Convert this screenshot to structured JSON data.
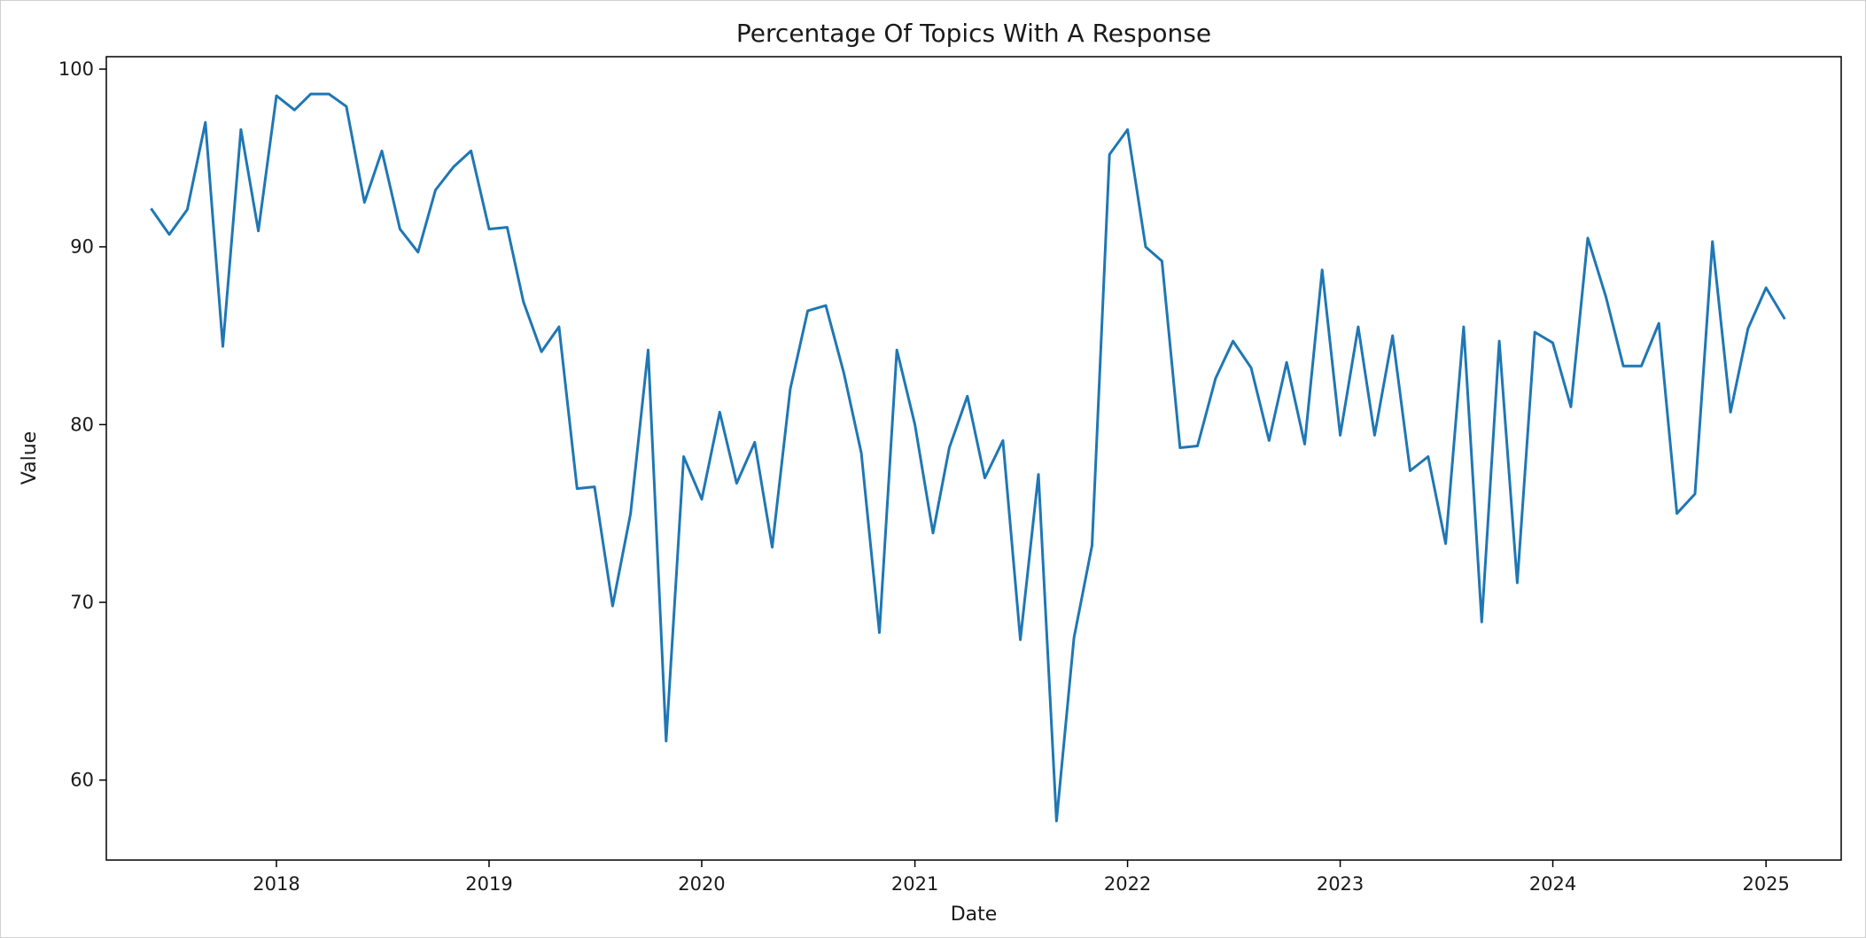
{
  "chart_data": {
    "type": "line",
    "title": "Percentage Of Topics With A Response",
    "xlabel": "Date",
    "ylabel": "Value",
    "x_ticks": [
      "2018",
      "2019",
      "2020",
      "2021",
      "2022",
      "2023",
      "2024",
      "2025"
    ],
    "y_ticks": [
      60,
      70,
      80,
      90,
      100
    ],
    "xlim": [
      "2017-03-15",
      "2025-05-10"
    ],
    "ylim": [
      55.5,
      100.7
    ],
    "grid": false,
    "line_color": "#1f77b4",
    "x": [
      "2017-06-01",
      "2017-07-01",
      "2017-08-01",
      "2017-09-01",
      "2017-10-01",
      "2017-11-01",
      "2017-12-01",
      "2018-01-01",
      "2018-02-01",
      "2018-03-01",
      "2018-04-01",
      "2018-05-01",
      "2018-06-01",
      "2018-07-01",
      "2018-08-01",
      "2018-09-01",
      "2018-10-01",
      "2018-11-01",
      "2018-12-01",
      "2019-01-01",
      "2019-02-01",
      "2019-03-01",
      "2019-04-01",
      "2019-05-01",
      "2019-06-01",
      "2019-07-01",
      "2019-08-01",
      "2019-09-01",
      "2019-10-01",
      "2019-11-01",
      "2019-12-01",
      "2020-01-01",
      "2020-02-01",
      "2020-03-01",
      "2020-04-01",
      "2020-05-01",
      "2020-06-01",
      "2020-07-01",
      "2020-08-01",
      "2020-09-01",
      "2020-10-01",
      "2020-11-01",
      "2020-12-01",
      "2021-01-01",
      "2021-02-01",
      "2021-03-01",
      "2021-04-01",
      "2021-05-01",
      "2021-06-01",
      "2021-07-01",
      "2021-08-01",
      "2021-09-01",
      "2021-10-01",
      "2021-11-01",
      "2021-12-01",
      "2022-01-01",
      "2022-02-01",
      "2022-03-01",
      "2022-04-01",
      "2022-05-01",
      "2022-06-01",
      "2022-07-01",
      "2022-08-01",
      "2022-09-01",
      "2022-10-01",
      "2022-11-01",
      "2022-12-01",
      "2023-01-01",
      "2023-02-01",
      "2023-03-01",
      "2023-04-01",
      "2023-05-01",
      "2023-06-01",
      "2023-07-01",
      "2023-08-01",
      "2023-09-01",
      "2023-10-01",
      "2023-11-01",
      "2023-12-01",
      "2024-01-01",
      "2024-02-01",
      "2024-03-01",
      "2024-04-01",
      "2024-05-01",
      "2024-06-01",
      "2024-07-01",
      "2024-08-01",
      "2024-09-01",
      "2024-10-01",
      "2024-11-01",
      "2024-12-01",
      "2025-01-01",
      "2025-02-01"
    ],
    "series": [
      {
        "values": [
          92.1,
          90.7,
          92.1,
          97.0,
          84.4,
          96.6,
          90.9,
          98.5,
          97.7,
          98.6,
          98.6,
          97.9,
          92.5,
          95.4,
          91.0,
          89.7,
          93.2,
          94.5,
          95.4,
          91.0,
          91.1,
          86.9,
          84.1,
          85.5,
          76.4,
          76.5,
          69.8,
          75.0,
          84.2,
          62.2,
          78.2,
          75.8,
          80.7,
          76.7,
          79.0,
          73.1,
          82.0,
          86.4,
          86.7,
          82.9,
          78.4,
          68.3,
          84.2,
          80.0,
          73.9,
          78.7,
          81.6,
          77.0,
          79.1,
          67.9,
          77.2,
          57.7,
          68.0,
          73.2,
          95.2,
          96.6,
          90.0,
          89.2,
          78.7,
          78.8,
          82.6,
          84.7,
          83.2,
          79.1,
          83.5,
          78.9,
          88.7,
          79.4,
          85.5,
          79.4,
          85.0,
          77.4,
          78.2,
          73.3,
          85.5,
          68.9,
          84.7,
          71.1,
          85.2,
          84.6,
          81.0,
          90.5,
          87.2,
          83.3,
          83.3,
          85.7,
          75.0,
          76.1,
          90.3,
          80.7,
          85.4,
          87.7,
          86.0
        ]
      }
    ]
  }
}
